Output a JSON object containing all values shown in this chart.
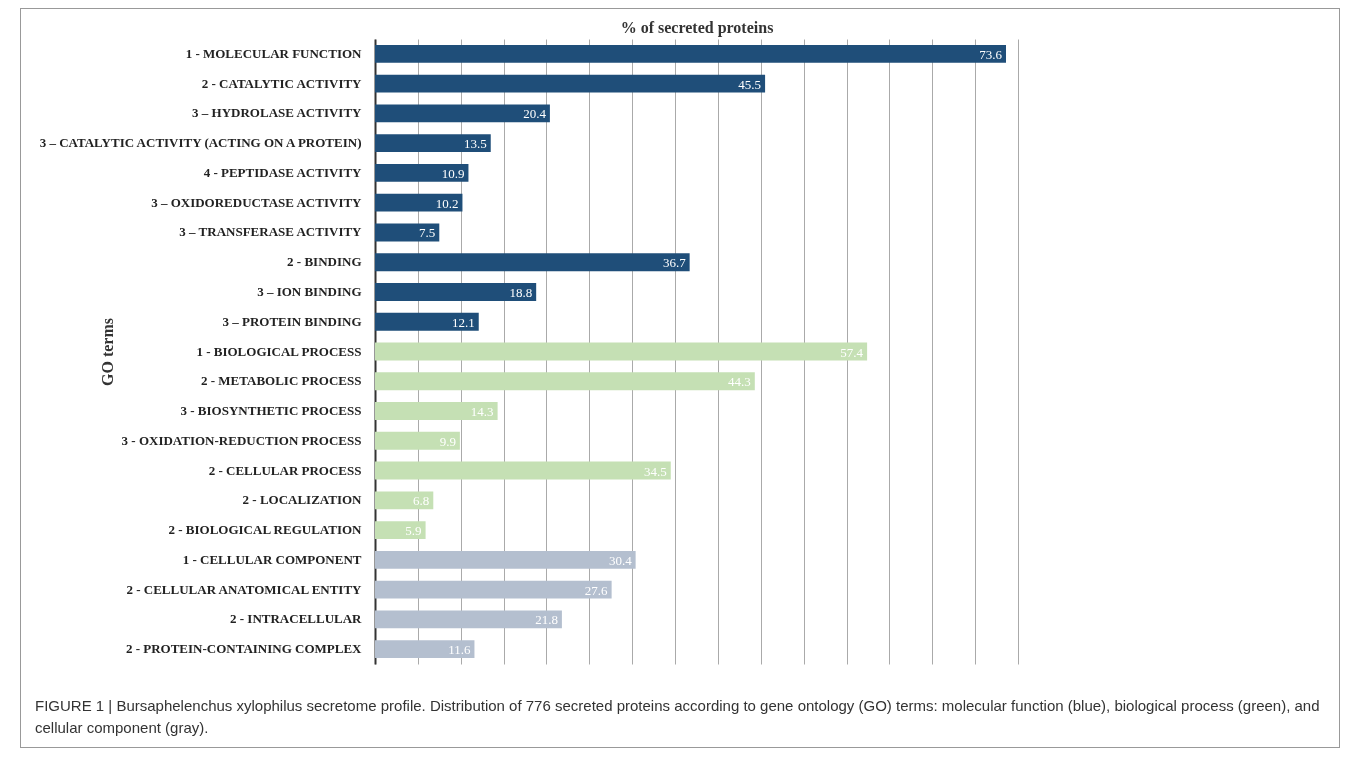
{
  "chart_data": {
    "type": "bar",
    "orientation": "horizontal",
    "xlabel": "% of secreted proteins",
    "ylabel": "GO terms",
    "categories": [
      "1 - MOLECULAR FUNCTION",
      "2 - CATALYTIC ACTIVITY",
      "3 – HYDROLASE ACTIVITY",
      "3 – CATALYTIC ACTIVITY (ACTING ON A PROTEIN)",
      "4 - PEPTIDASE ACTIVITY",
      "3 – OXIDOREDUCTASE ACTIVITY",
      "3 – TRANSFERASE ACTIVITY",
      "2 - BINDING",
      "3 – ION BINDING",
      "3 – PROTEIN BINDING",
      "1 - BIOLOGICAL PROCESS",
      "2 - METABOLIC PROCESS",
      "3 - BIOSYNTHETIC PROCESS",
      "3 - OXIDATION-REDUCTION PROCESS",
      "2 - CELLULAR PROCESS",
      "2 - LOCALIZATION",
      "2 - BIOLOGICAL REGULATION",
      "1 - CELLULAR COMPONENT",
      "2 - CELLULAR ANATOMICAL ENTITY",
      "2 - INTRACELLULAR",
      "2 - PROTEIN-CONTAINING COMPLEX"
    ],
    "values": [
      73.6,
      45.5,
      20.4,
      13.5,
      10.9,
      10.2,
      7.5,
      36.7,
      18.8,
      12.1,
      57.4,
      44.3,
      14.3,
      9.9,
      34.5,
      6.8,
      5.9,
      30.4,
      27.6,
      21.8,
      11.6
    ],
    "colors": [
      "#1f4e79",
      "#1f4e79",
      "#1f4e79",
      "#1f4e79",
      "#1f4e79",
      "#1f4e79",
      "#1f4e79",
      "#1f4e79",
      "#1f4e79",
      "#1f4e79",
      "#c5e0b4",
      "#c5e0b4",
      "#c5e0b4",
      "#c5e0b4",
      "#c5e0b4",
      "#c5e0b4",
      "#c5e0b4",
      "#b4bfcf",
      "#b4bfcf",
      "#b4bfcf",
      "#b4bfcf"
    ],
    "data_labels": true,
    "xlim": [
      0,
      75
    ],
    "xticks": [
      {
        "value": 0,
        "label": null
      },
      {
        "value": 5,
        "label": null
      },
      {
        "value": 10,
        "label": null
      },
      {
        "value": 15,
        "label": null
      },
      {
        "value": 20,
        "label": null
      },
      {
        "value": 25,
        "label": null
      },
      {
        "value": 30,
        "label": null
      },
      {
        "value": 35,
        "label": null
      },
      {
        "value": 40,
        "label": null
      },
      {
        "value": 45,
        "label": null
      },
      {
        "value": 50,
        "label": null
      },
      {
        "value": 55,
        "label": null
      },
      {
        "value": 60,
        "label": null
      },
      {
        "value": 65,
        "label": null
      },
      {
        "value": 70,
        "label": null
      },
      {
        "value": 75,
        "label": null
      }
    ],
    "grid": "x",
    "tick_labels": "y",
    "annotations": [
      "FIGURE 1 | Bursaphelenchus xylophilus secretome profile. Distribution of 776 secreted proteins according to gene ontology (GO) terms: molecular function (blue), biological process (green), and cellular component (gray)."
    ]
  }
}
